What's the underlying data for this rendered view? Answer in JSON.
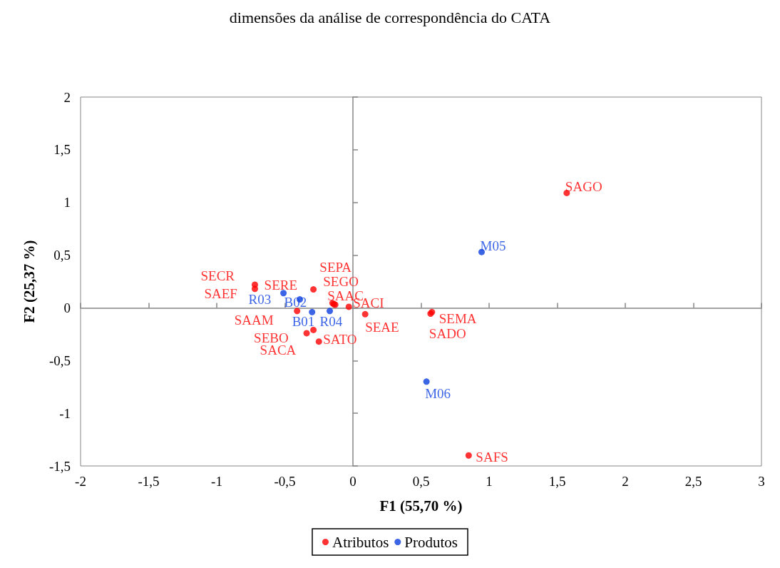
{
  "chart_data": {
    "type": "scatter",
    "title": "dimensões da análise de correspondência do CATA",
    "xlabel": "F1 (55,70 %)",
    "ylabel": "F2 (25,37 %)",
    "xlim": [
      -2,
      3
    ],
    "ylim": [
      -1.5,
      2
    ],
    "xticks": [
      {
        "value": -2,
        "label": "-2"
      },
      {
        "value": -1.5,
        "label": "-1,5"
      },
      {
        "value": -1,
        "label": "-1"
      },
      {
        "value": -0.5,
        "label": "-0,5"
      },
      {
        "value": 0,
        "label": "0"
      },
      {
        "value": 0.5,
        "label": "0,5"
      },
      {
        "value": 1,
        "label": "1"
      },
      {
        "value": 1.5,
        "label": "1,5"
      },
      {
        "value": 2,
        "label": "2"
      },
      {
        "value": 2.5,
        "label": "2,5"
      },
      {
        "value": 3,
        "label": "3"
      }
    ],
    "yticks": [
      {
        "value": -1.5,
        "label": "-1,5"
      },
      {
        "value": -1,
        "label": "-1"
      },
      {
        "value": -0.5,
        "label": "-0,5"
      },
      {
        "value": 0,
        "label": "0"
      },
      {
        "value": 0.5,
        "label": "0,5"
      },
      {
        "value": 1,
        "label": "1"
      },
      {
        "value": 1.5,
        "label": "1,5"
      },
      {
        "value": 2,
        "label": "2"
      }
    ],
    "legend": "bottom",
    "marker": "circle",
    "series": [
      {
        "name": "Atributos",
        "color": "#ff0000",
        "x": [
          1.57,
          0.85,
          0.58,
          0.57,
          0.09,
          -0.03,
          -0.72,
          -0.72,
          -0.29,
          -0.41,
          -0.15,
          -0.14,
          -0.13,
          -0.34,
          -0.29,
          -0.25
        ],
        "values": [
          1.09,
          -1.4,
          -0.04,
          -0.055,
          -0.06,
          0.01,
          0.22,
          0.18,
          0.175,
          -0.03,
          0.045,
          0.035,
          0.03,
          -0.24,
          -0.21,
          -0.32
        ],
        "value_labels": [
          "SAGO",
          "SAFS",
          "SEMA",
          "SADO",
          "SEAE",
          "SACI",
          "SECR",
          "SAEF",
          "SERE",
          "SAAM",
          "SEPA",
          "SEGO",
          "SAAC",
          "SEBO",
          "SACA",
          "SATO"
        ]
      },
      {
        "name": "Produtos",
        "color": "#0b3fe0",
        "x": [
          0.945,
          0.54,
          -0.51,
          -0.39,
          -0.3,
          -0.17
        ],
        "values": [
          0.53,
          -0.7,
          0.14,
          0.08,
          -0.04,
          -0.03
        ],
        "value_labels": [
          "M05",
          "M06",
          "R03",
          "B02",
          "B01",
          "R04"
        ]
      }
    ]
  }
}
